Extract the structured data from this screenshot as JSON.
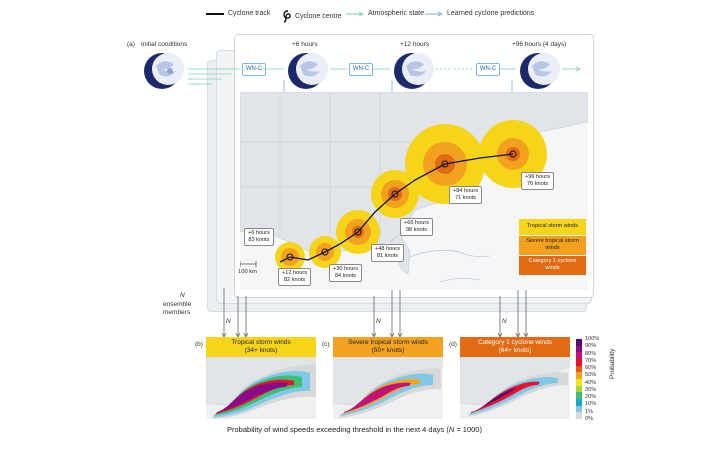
{
  "legend": {
    "cyclone_track": "Cyclone track",
    "cyclone_centre": "Cyclone centre",
    "atmospheric_state": "Atmospheric state",
    "learned_predictions": "Learned cyclone predictions"
  },
  "panel_a": {
    "letter": "(a)",
    "initial_conditions": "Initial conditions",
    "step_labels": [
      "+6 hours",
      "+12 hours",
      "+96 hours (4 days)"
    ],
    "model_label": "WN-C",
    "ensemble_n": "N",
    "ensemble_label_line1": "ensemble",
    "ensemble_label_line2": "members",
    "scale_bar": "100 km",
    "callouts": [
      {
        "hours": "+6 hours",
        "knots": "83 knots"
      },
      {
        "hours": "+12 hours",
        "knots": "82 knots"
      },
      {
        "hours": "+30 hours",
        "knots": "84 knots"
      },
      {
        "hours": "+48 hours",
        "knots": "81 knots"
      },
      {
        "hours": "+66 hours",
        "knots": "98 knots"
      },
      {
        "hours": "+84 hours",
        "knots": "71 knots"
      },
      {
        "hours": "+96 hours",
        "knots": "76 knots"
      }
    ],
    "wind_key": [
      {
        "label": "Tropical storm winds",
        "color": "#f6d418"
      },
      {
        "label": "Severe tropical storm winds",
        "color": "#f2a21e"
      },
      {
        "label": "Category 1 cyclone winds",
        "color": "#e26a12"
      }
    ]
  },
  "panels": [
    {
      "letter": "(b)",
      "title_line1": "Tropical storm winds",
      "title_line2": "(34+ knots)",
      "color": "#f6d418"
    },
    {
      "letter": "(c)",
      "title_line1": "Severe tropical storm winds",
      "title_line2": "(50+ knots)",
      "color": "#f2a21e"
    },
    {
      "letter": "(d)",
      "title_line1": "Category 1 cyclone winds",
      "title_line2": "(64+ knots)",
      "color": "#e26a12"
    }
  ],
  "colorbar": {
    "title": "Probability",
    "ticks": [
      "100%",
      "90%",
      "80%",
      "70%",
      "60%",
      "50%",
      "40%",
      "30%",
      "20%",
      "10%",
      "1%",
      "0%"
    ],
    "colors": [
      "#5a0a6e",
      "#8a0a8a",
      "#c2127a",
      "#e8142a",
      "#f2571a",
      "#f7a41c",
      "#f6e21a",
      "#a9d63a",
      "#3cbf70",
      "#1ea7c9",
      "#7fc8ea",
      "#d8d8d8"
    ]
  },
  "footer": {
    "text": "Probability of wind speeds exceeding threshold in the next 4 days (",
    "n": "N",
    "tail": " = 1000)"
  }
}
